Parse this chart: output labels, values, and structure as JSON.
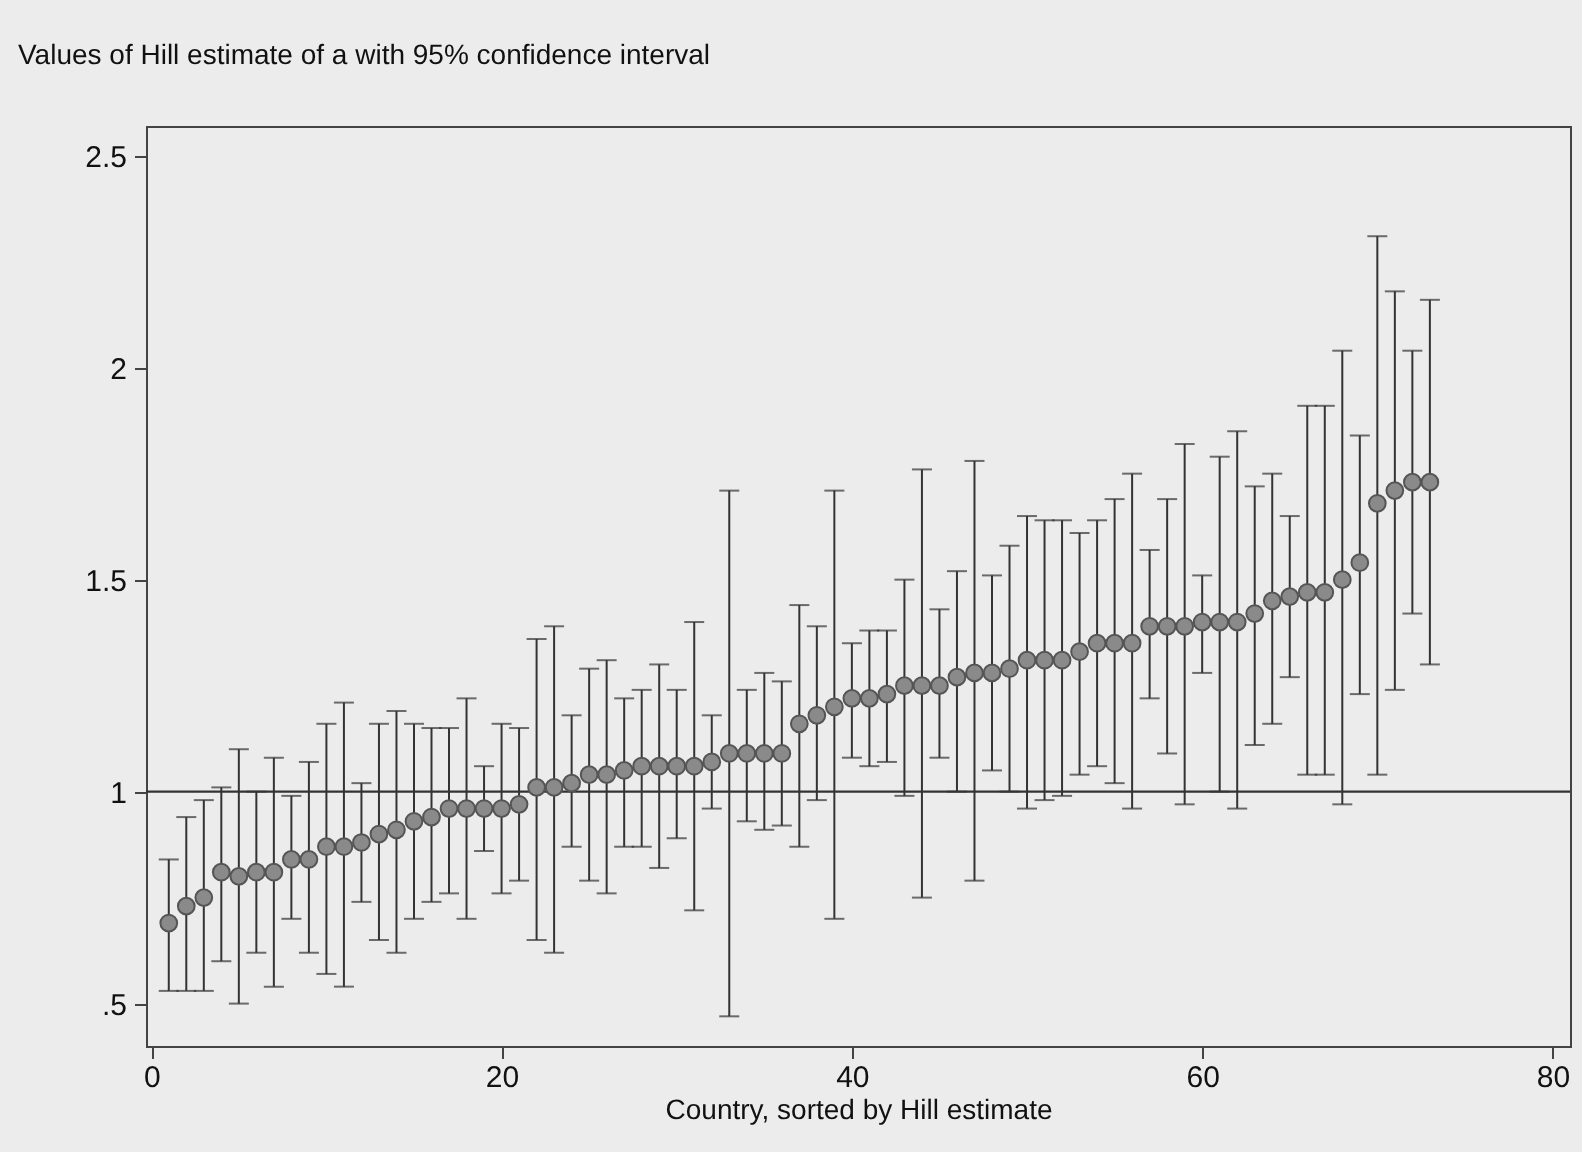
{
  "chart_data": {
    "type": "scatter",
    "title": "Values of Hill estimate of a with 95% confidence interval",
    "xlabel": "Country, sorted by Hill estimate",
    "x": [
      1,
      2,
      3,
      4,
      5,
      6,
      7,
      8,
      9,
      10,
      11,
      12,
      13,
      14,
      15,
      16,
      17,
      18,
      19,
      20,
      21,
      22,
      23,
      24,
      25,
      26,
      27,
      28,
      29,
      30,
      31,
      32,
      33,
      34,
      35,
      36,
      37,
      38,
      39,
      40,
      41,
      42,
      43,
      44,
      45,
      46,
      47,
      48,
      49,
      50,
      51,
      52,
      53,
      54,
      55,
      56,
      57,
      58,
      59,
      60,
      61,
      62,
      63,
      64,
      65,
      66,
      67,
      68,
      69,
      70,
      71,
      72,
      73
    ],
    "values": [
      0.69,
      0.73,
      0.75,
      0.81,
      0.8,
      0.81,
      0.81,
      0.84,
      0.84,
      0.87,
      0.87,
      0.88,
      0.9,
      0.91,
      0.93,
      0.94,
      0.96,
      0.96,
      0.96,
      0.96,
      0.97,
      1.01,
      1.01,
      1.02,
      1.04,
      1.04,
      1.05,
      1.06,
      1.06,
      1.06,
      1.06,
      1.07,
      1.09,
      1.09,
      1.09,
      1.09,
      1.16,
      1.18,
      1.2,
      1.22,
      1.22,
      1.23,
      1.25,
      1.25,
      1.25,
      1.27,
      1.28,
      1.28,
      1.29,
      1.31,
      1.31,
      1.31,
      1.33,
      1.35,
      1.35,
      1.35,
      1.39,
      1.39,
      1.39,
      1.4,
      1.4,
      1.4,
      1.42,
      1.45,
      1.46,
      1.47,
      1.47,
      1.5,
      1.54,
      1.68,
      1.71,
      1.73,
      1.73
    ],
    "errors": [
      [
        0.53,
        0.84
      ],
      [
        0.53,
        0.94
      ],
      [
        0.53,
        0.98
      ],
      [
        0.6,
        1.01
      ],
      [
        0.5,
        1.1
      ],
      [
        0.62,
        1.0
      ],
      [
        0.54,
        1.08
      ],
      [
        0.7,
        0.99
      ],
      [
        0.62,
        1.07
      ],
      [
        0.57,
        1.16
      ],
      [
        0.54,
        1.21
      ],
      [
        0.74,
        1.02
      ],
      [
        0.65,
        1.16
      ],
      [
        0.62,
        1.19
      ],
      [
        0.7,
        1.16
      ],
      [
        0.74,
        1.15
      ],
      [
        0.76,
        1.15
      ],
      [
        0.7,
        1.22
      ],
      [
        0.86,
        1.06
      ],
      [
        0.76,
        1.16
      ],
      [
        0.79,
        1.15
      ],
      [
        0.65,
        1.36
      ],
      [
        0.62,
        1.39
      ],
      [
        0.87,
        1.18
      ],
      [
        0.79,
        1.29
      ],
      [
        0.76,
        1.31
      ],
      [
        0.87,
        1.22
      ],
      [
        0.87,
        1.24
      ],
      [
        0.82,
        1.3
      ],
      [
        0.89,
        1.24
      ],
      [
        0.72,
        1.4
      ],
      [
        0.96,
        1.18
      ],
      [
        0.47,
        1.71
      ],
      [
        0.93,
        1.24
      ],
      [
        0.91,
        1.28
      ],
      [
        0.92,
        1.26
      ],
      [
        0.87,
        1.44
      ],
      [
        0.98,
        1.39
      ],
      [
        0.7,
        1.71
      ],
      [
        1.08,
        1.35
      ],
      [
        1.06,
        1.38
      ],
      [
        1.07,
        1.38
      ],
      [
        0.99,
        1.5
      ],
      [
        0.75,
        1.76
      ],
      [
        1.08,
        1.43
      ],
      [
        1.0,
        1.52
      ],
      [
        0.79,
        1.78
      ],
      [
        1.05,
        1.51
      ],
      [
        1.0,
        1.58
      ],
      [
        0.96,
        1.65
      ],
      [
        0.98,
        1.64
      ],
      [
        0.99,
        1.64
      ],
      [
        1.04,
        1.61
      ],
      [
        1.06,
        1.64
      ],
      [
        1.02,
        1.69
      ],
      [
        0.96,
        1.75
      ],
      [
        1.22,
        1.57
      ],
      [
        1.09,
        1.69
      ],
      [
        0.97,
        1.82
      ],
      [
        1.28,
        1.51
      ],
      [
        1.0,
        1.79
      ],
      [
        0.96,
        1.85
      ],
      [
        1.11,
        1.72
      ],
      [
        1.16,
        1.75
      ],
      [
        1.27,
        1.65
      ],
      [
        1.04,
        1.91
      ],
      [
        1.04,
        1.91
      ],
      [
        0.97,
        2.04
      ],
      [
        1.23,
        1.84
      ],
      [
        1.04,
        2.31
      ],
      [
        1.24,
        2.18
      ],
      [
        1.42,
        2.04
      ],
      [
        1.3,
        2.16
      ]
    ],
    "color": "#8a8a8a",
    "marker": "circle",
    "xlim": [
      -0.3,
      81
    ],
    "ylim": [
      0.4,
      2.57
    ],
    "xticks": [
      0,
      20,
      40,
      60,
      80
    ],
    "yticks": [
      {
        "value": 0.5,
        "label": ".5"
      },
      1,
      1.5,
      2,
      2.5
    ],
    "ref_lines": [
      {
        "axis": "y",
        "value": 1
      }
    ],
    "grid": false
  }
}
